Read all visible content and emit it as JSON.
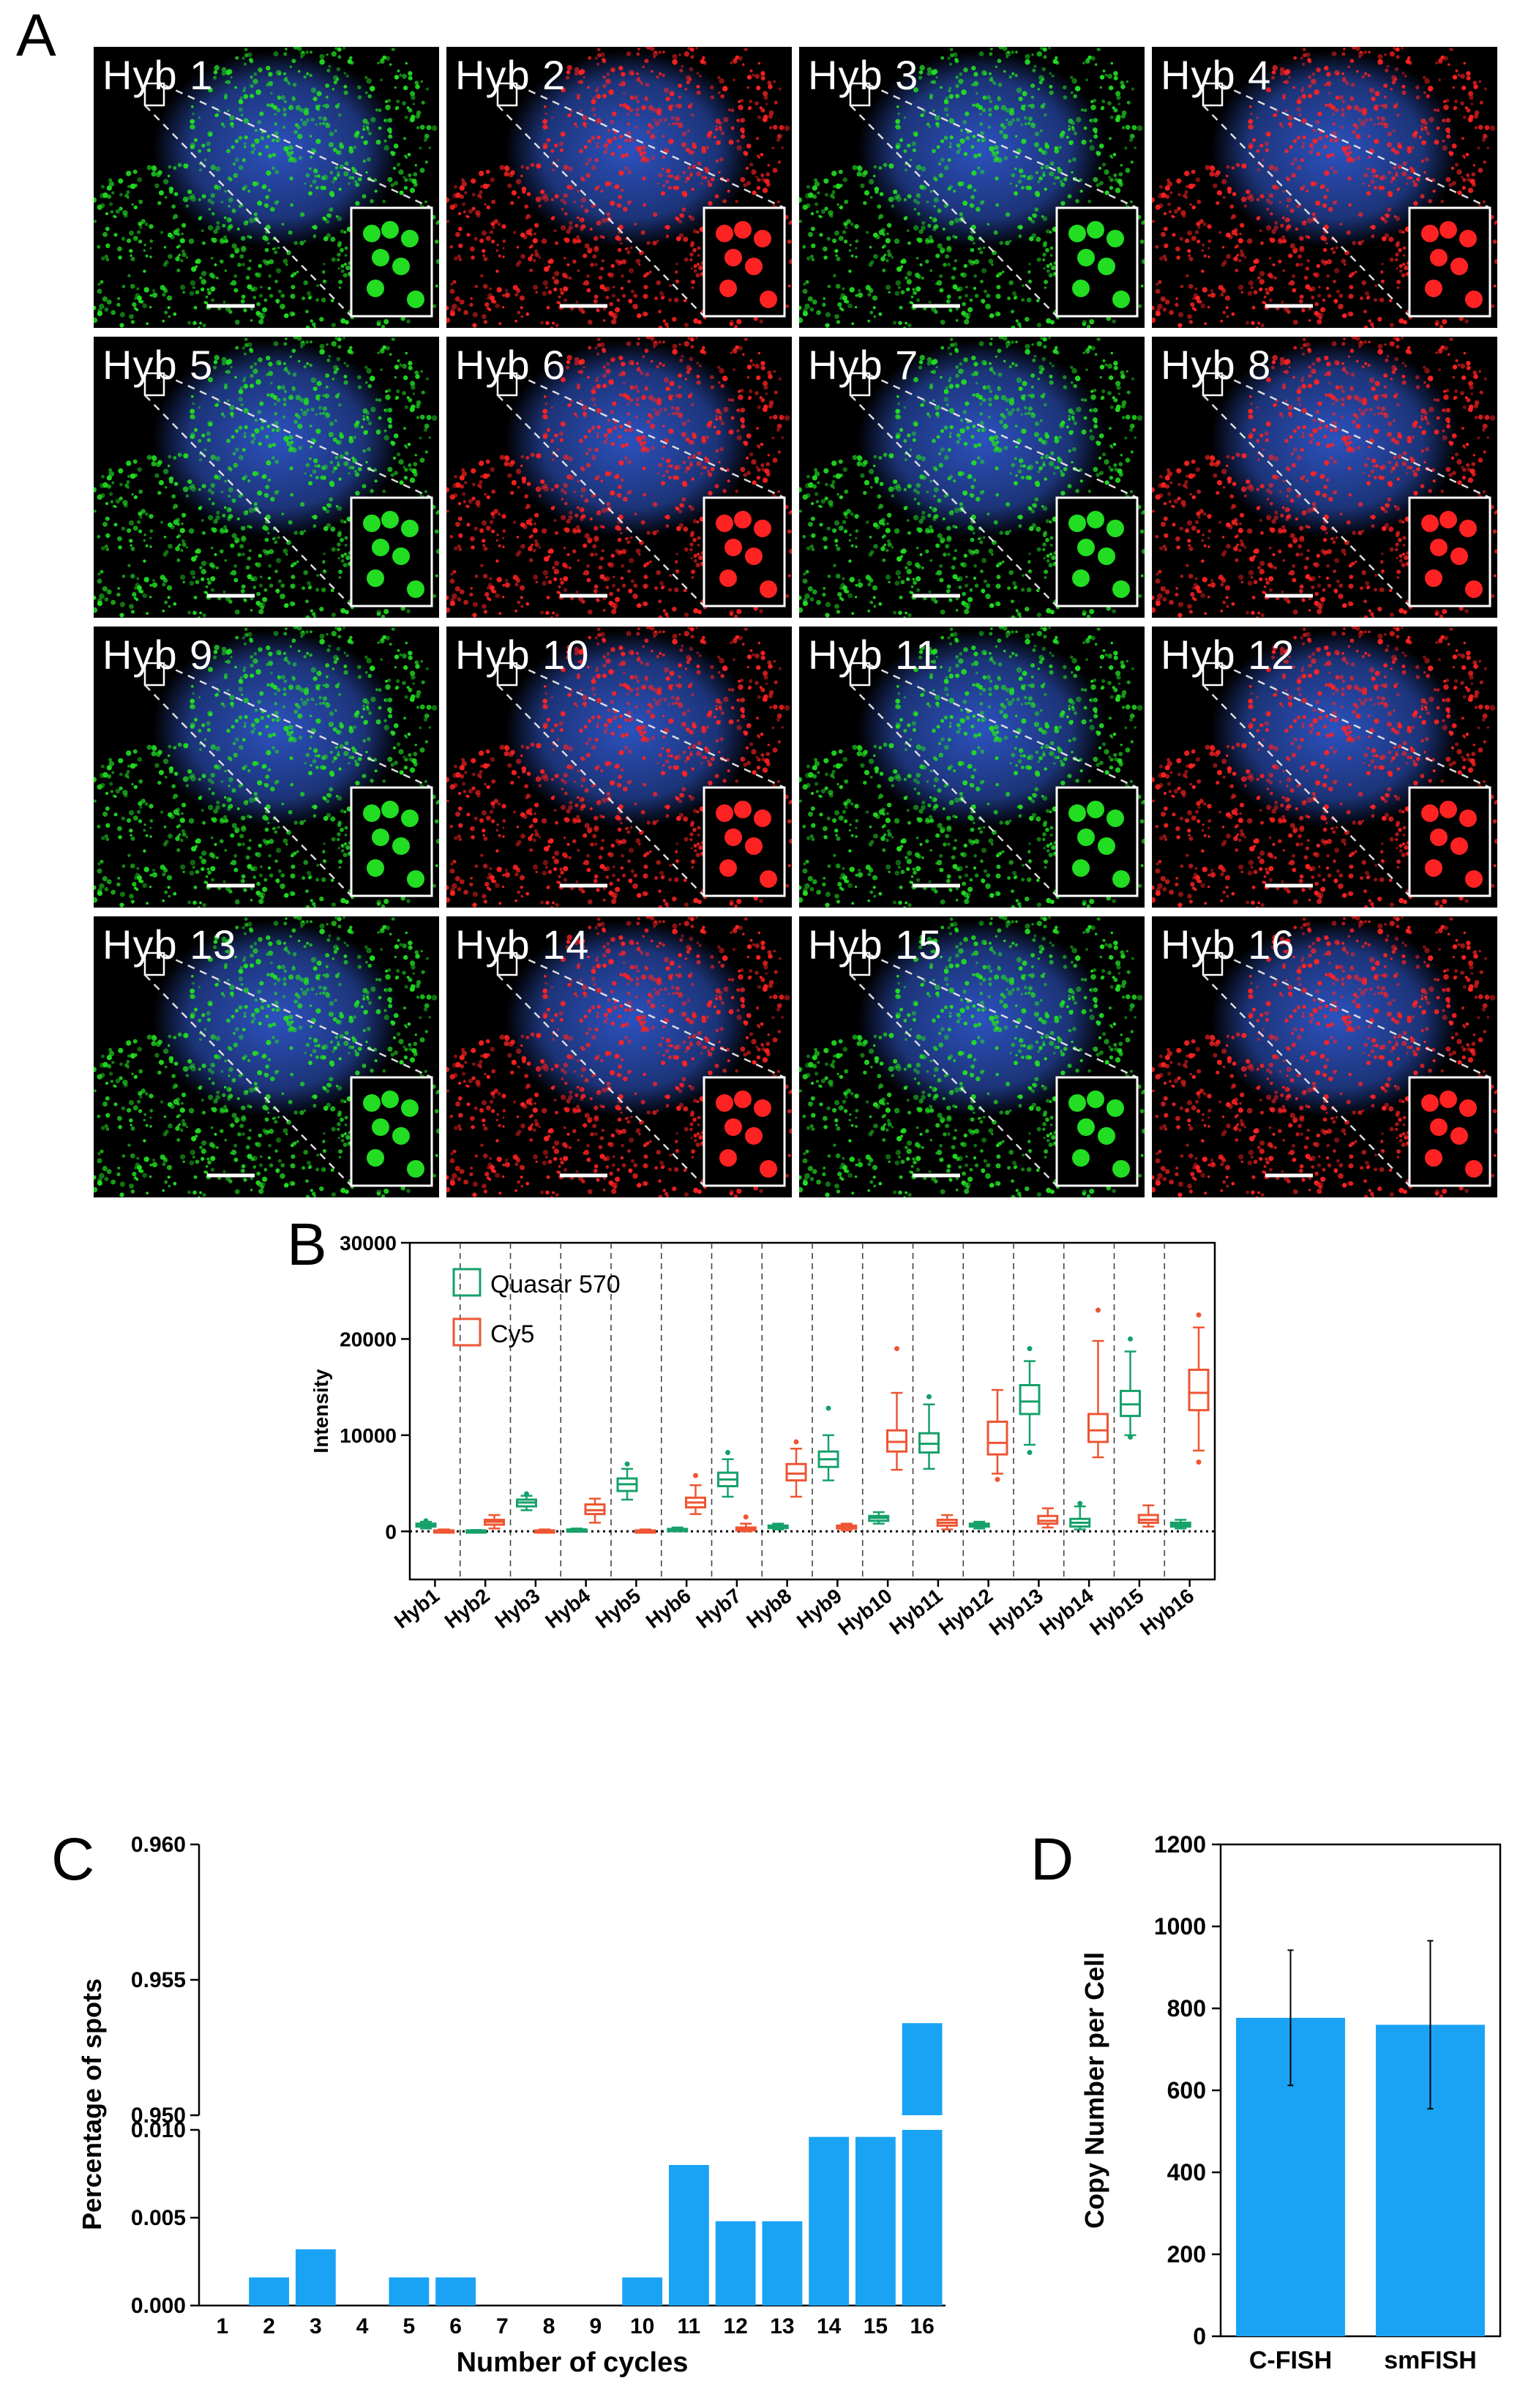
{
  "panels": {
    "a": {
      "letter": "A",
      "tiles": [
        {
          "label": "Hyb 1",
          "channel": "green"
        },
        {
          "label": "Hyb 2",
          "channel": "red"
        },
        {
          "label": "Hyb 3",
          "channel": "green"
        },
        {
          "label": "Hyb 4",
          "channel": "red"
        },
        {
          "label": "Hyb 5",
          "channel": "green"
        },
        {
          "label": "Hyb 6",
          "channel": "red"
        },
        {
          "label": "Hyb 7",
          "channel": "green"
        },
        {
          "label": "Hyb 8",
          "channel": "red"
        },
        {
          "label": "Hyb 9",
          "channel": "green"
        },
        {
          "label": "Hyb 10",
          "channel": "red"
        },
        {
          "label": "Hyb 11",
          "channel": "green"
        },
        {
          "label": "Hyb 12",
          "channel": "red"
        },
        {
          "label": "Hyb 13",
          "channel": "green"
        },
        {
          "label": "Hyb 14",
          "channel": "red"
        },
        {
          "label": "Hyb 15",
          "channel": "green"
        },
        {
          "label": "Hyb 16",
          "channel": "red"
        }
      ],
      "colors": {
        "green": "#22dd22",
        "red": "#ff2222",
        "nucleus": "#2f56c8",
        "background": "#000000"
      }
    },
    "b": {
      "letter": "B"
    },
    "c": {
      "letter": "C"
    },
    "d": {
      "letter": "D"
    }
  },
  "chart_data": [
    {
      "id": "B",
      "type": "box",
      "ylabel": "Intensity",
      "ylim": [
        -5000,
        30000
      ],
      "yticks": [
        "0",
        "10000",
        "20000",
        "30000"
      ],
      "categories": [
        "Hyb1",
        "Hyb2",
        "Hyb3",
        "Hyb4",
        "Hyb5",
        "Hyb6",
        "Hyb7",
        "Hyb8",
        "Hyb9",
        "Hyb10",
        "Hyb11",
        "Hyb12",
        "Hyb13",
        "Hyb14",
        "Hyb15",
        "Hyb16"
      ],
      "legend": [
        {
          "name": "Quasar 570",
          "color": "#16a06a"
        },
        {
          "name": "Cy5",
          "color": "#ee5533"
        }
      ],
      "series": [
        {
          "name": "Quasar 570",
          "color": "#16a06a",
          "boxes": [
            {
              "cat": 0,
              "min": 300,
              "q1": 500,
              "median": 650,
              "q3": 800,
              "max": 1000,
              "outliers": [
                1100
              ]
            },
            {
              "cat": 1,
              "min": -100,
              "q1": 0,
              "median": 50,
              "q3": 100,
              "max": 150,
              "outliers": []
            },
            {
              "cat": 2,
              "min": 2200,
              "q1": 2600,
              "median": 3000,
              "q3": 3300,
              "max": 3700,
              "outliers": [
                3900
              ]
            },
            {
              "cat": 3,
              "min": 0,
              "q1": 100,
              "median": 150,
              "q3": 200,
              "max": 300,
              "outliers": []
            },
            {
              "cat": 4,
              "min": 3300,
              "q1": 4200,
              "median": 4900,
              "q3": 5500,
              "max": 6500,
              "outliers": [
                7000
              ]
            },
            {
              "cat": 5,
              "min": 0,
              "q1": 100,
              "median": 150,
              "q3": 250,
              "max": 400,
              "outliers": []
            },
            {
              "cat": 6,
              "min": 3600,
              "q1": 4700,
              "median": 5400,
              "q3": 6100,
              "max": 7500,
              "outliers": [
                8200
              ]
            },
            {
              "cat": 7,
              "min": 200,
              "q1": 350,
              "median": 450,
              "q3": 600,
              "max": 800,
              "outliers": []
            },
            {
              "cat": 8,
              "min": 5300,
              "q1": 6700,
              "median": 7500,
              "q3": 8300,
              "max": 10000,
              "outliers": [
                12800
              ]
            },
            {
              "cat": 9,
              "min": 800,
              "q1": 1100,
              "median": 1400,
              "q3": 1600,
              "max": 2000,
              "outliers": []
            },
            {
              "cat": 10,
              "min": 6500,
              "q1": 8200,
              "median": 9100,
              "q3": 10200,
              "max": 13200,
              "outliers": [
                14000
              ]
            },
            {
              "cat": 11,
              "min": 300,
              "q1": 500,
              "median": 700,
              "q3": 800,
              "max": 1000,
              "outliers": []
            },
            {
              "cat": 12,
              "min": 9000,
              "q1": 12200,
              "median": 13500,
              "q3": 15200,
              "max": 17700,
              "outliers": [
                8200,
                19000
              ]
            },
            {
              "cat": 13,
              "min": 200,
              "q1": 500,
              "median": 900,
              "q3": 1300,
              "max": 2600,
              "outliers": [
                2900
              ]
            },
            {
              "cat": 14,
              "min": 10000,
              "q1": 12000,
              "median": 13200,
              "q3": 14600,
              "max": 18700,
              "outliers": [
                20000,
                9800
              ]
            },
            {
              "cat": 15,
              "min": 300,
              "q1": 500,
              "median": 700,
              "q3": 900,
              "max": 1200,
              "outliers": []
            }
          ]
        },
        {
          "name": "Cy5",
          "color": "#ee5533",
          "boxes": [
            {
              "cat": 0,
              "min": -100,
              "q1": 0,
              "median": 50,
              "q3": 100,
              "max": 200,
              "outliers": []
            },
            {
              "cat": 1,
              "min": 300,
              "q1": 700,
              "median": 1000,
              "q3": 1200,
              "max": 1700,
              "outliers": []
            },
            {
              "cat": 2,
              "min": -100,
              "q1": 0,
              "median": 50,
              "q3": 100,
              "max": 200,
              "outliers": []
            },
            {
              "cat": 3,
              "min": 900,
              "q1": 1800,
              "median": 2200,
              "q3": 2800,
              "max": 3400,
              "outliers": []
            },
            {
              "cat": 4,
              "min": -100,
              "q1": 0,
              "median": 50,
              "q3": 100,
              "max": 200,
              "outliers": []
            },
            {
              "cat": 5,
              "min": 1800,
              "q1": 2500,
              "median": 3000,
              "q3": 3500,
              "max": 4800,
              "outliers": [
                5800
              ]
            },
            {
              "cat": 6,
              "min": 0,
              "q1": 100,
              "median": 200,
              "q3": 400,
              "max": 800,
              "outliers": [
                1500
              ]
            },
            {
              "cat": 7,
              "min": 3600,
              "q1": 5300,
              "median": 6000,
              "q3": 7000,
              "max": 8600,
              "outliers": [
                9300
              ]
            },
            {
              "cat": 8,
              "min": 100,
              "q1": 300,
              "median": 400,
              "q3": 600,
              "max": 800,
              "outliers": []
            },
            {
              "cat": 9,
              "min": 6400,
              "q1": 8300,
              "median": 9300,
              "q3": 10500,
              "max": 14400,
              "outliers": [
                19000
              ]
            },
            {
              "cat": 10,
              "min": 200,
              "q1": 600,
              "median": 900,
              "q3": 1200,
              "max": 1700,
              "outliers": []
            },
            {
              "cat": 11,
              "min": 6000,
              "q1": 8000,
              "median": 9200,
              "q3": 11400,
              "max": 14700,
              "outliers": [
                5400
              ]
            },
            {
              "cat": 12,
              "min": 400,
              "q1": 800,
              "median": 1100,
              "q3": 1600,
              "max": 2400,
              "outliers": []
            },
            {
              "cat": 13,
              "min": 7700,
              "q1": 9300,
              "median": 10500,
              "q3": 12200,
              "max": 19800,
              "outliers": [
                23000
              ]
            },
            {
              "cat": 14,
              "min": 500,
              "q1": 900,
              "median": 1200,
              "q3": 1700,
              "max": 2700,
              "outliers": []
            },
            {
              "cat": 15,
              "min": 8400,
              "q1": 12600,
              "median": 14400,
              "q3": 16800,
              "max": 21200,
              "outliers": [
                7200,
                22500
              ]
            }
          ]
        }
      ]
    },
    {
      "id": "C",
      "type": "bar",
      "xlabel": "Number of cycles",
      "ylabel": "Percentage of spots",
      "categories": [
        "1",
        "2",
        "3",
        "4",
        "5",
        "6",
        "7",
        "8",
        "9",
        "10",
        "11",
        "12",
        "13",
        "14",
        "15",
        "16"
      ],
      "values": [
        0,
        0.0016,
        0.0032,
        0,
        0.0016,
        0.0016,
        0,
        0,
        0,
        0.0016,
        0.008,
        0.0048,
        0.0048,
        0.0096,
        0.0096,
        0.9534
      ],
      "broken_axis": {
        "lower_ylim": [
          0,
          0.01
        ],
        "upper_ylim": [
          0.95,
          0.96
        ]
      },
      "lower_yticks": [
        "0.000",
        "0.005",
        "0.010"
      ],
      "upper_yticks": [
        "0.950",
        "0.955",
        "0.960"
      ],
      "color": "#1aa3f5"
    },
    {
      "id": "D",
      "type": "bar",
      "ylabel": "Copy Number per Cell",
      "categories": [
        "C-FISH",
        "smFISH"
      ],
      "values": [
        777,
        760
      ],
      "errors": [
        165,
        205
      ],
      "ylim": [
        0,
        1200
      ],
      "yticks": [
        "0",
        "200",
        "400",
        "600",
        "800",
        "1000",
        "1200"
      ],
      "color": "#1aa3f5"
    }
  ]
}
